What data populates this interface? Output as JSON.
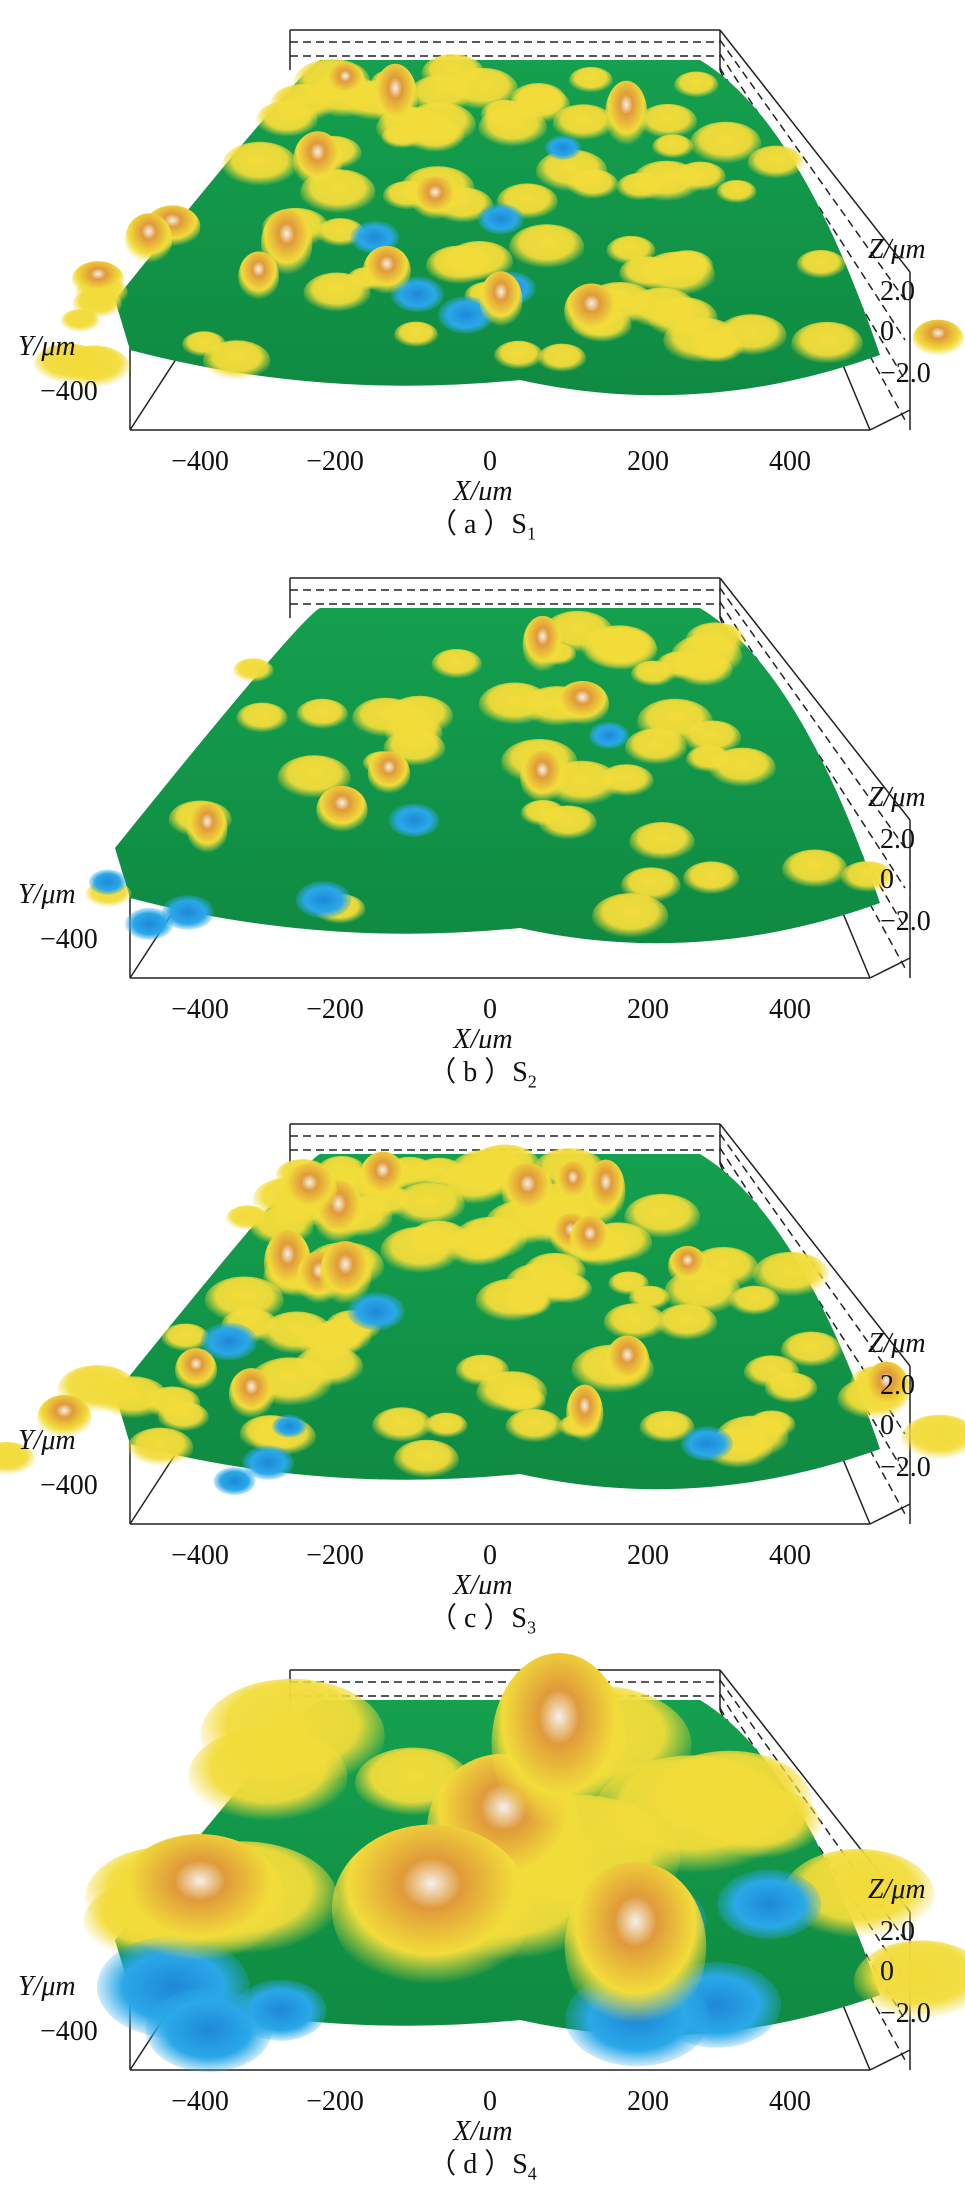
{
  "figure": {
    "colors": {
      "low": "#2aa8e8",
      "mid": "#14a04e",
      "high_yellow": "#f2dc3a",
      "peak_orange": "#e09a3a",
      "peak_tip": "#f6f0ea"
    }
  },
  "chart_data": [
    {
      "type": "surface",
      "caption_letter": "（ a ）S",
      "caption_sub": "1",
      "xlabel": "X/μm",
      "ylabel": "Y/μm",
      "zlabel": "Z/μm",
      "x_ticks": [
        "−400",
        "−200",
        "0",
        "200",
        "400"
      ],
      "y_ticks": [
        "−400"
      ],
      "z_ticks": [
        "2.0",
        "0",
        "−2.0"
      ],
      "xlim": [
        -500,
        500
      ],
      "zlim": [
        -2.0,
        2.0
      ],
      "surface": "dense small peaks, mostly yellow and green with blue pits"
    },
    {
      "type": "surface",
      "caption_letter": "（ b ）S",
      "caption_sub": "2",
      "xlabel": "X/μm",
      "ylabel": "Y/μm",
      "zlabel": "Z/μm",
      "x_ticks": [
        "−400",
        "−200",
        "0",
        "200",
        "400"
      ],
      "y_ticks": [
        "−400"
      ],
      "z_ticks": [
        "2.0",
        "0",
        "−2.0"
      ],
      "xlim": [
        -500,
        500
      ],
      "zlim": [
        -2.0,
        2.0
      ],
      "surface": "flatter green surface with scattered yellow ridges"
    },
    {
      "type": "surface",
      "caption_letter": "（ c ）S",
      "caption_sub": "3",
      "xlabel": "X/μm",
      "ylabel": "Y/μm",
      "zlabel": "Z/μm",
      "x_ticks": [
        "−400",
        "−200",
        "0",
        "200",
        "400"
      ],
      "y_ticks": [
        "−400"
      ],
      "z_ticks": [
        "2.0",
        "0",
        "−2.0"
      ],
      "xlim": [
        -500,
        500
      ],
      "zlim": [
        -2.0,
        2.0
      ],
      "surface": "rough surface, many sharp orange-yellow peaks"
    },
    {
      "type": "surface",
      "caption_letter": "（ d ）S",
      "caption_sub": "4",
      "xlabel": "X/μm",
      "ylabel": "Y/μm",
      "zlabel": "Z/μm",
      "x_ticks": [
        "−400",
        "−200",
        "0",
        "200",
        "400"
      ],
      "y_ticks": [
        "−400"
      ],
      "z_ticks": [
        "2.0",
        "0",
        "−2.0"
      ],
      "xlim": [
        -500,
        500
      ],
      "zlim": [
        -2.0,
        2.0
      ],
      "surface": "few large broad orange peaks with deep blue valleys"
    }
  ]
}
